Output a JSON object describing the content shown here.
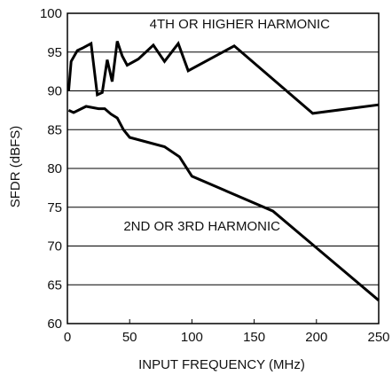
{
  "chart_data": {
    "type": "line",
    "xlabel": "INPUT FREQUENCY (MHz)",
    "ylabel": "SFDR (dBFS)",
    "xlim": [
      0,
      250
    ],
    "ylim": [
      60,
      100
    ],
    "x_ticks": [
      0,
      50,
      100,
      150,
      200,
      250
    ],
    "y_ticks": [
      60,
      65,
      70,
      75,
      80,
      85,
      90,
      95,
      100
    ],
    "grid": "horizontal",
    "line_color": "#000000",
    "series": [
      {
        "name": "4TH OR HIGHER HARMONIC",
        "x": [
          1,
          3,
          8,
          12,
          19,
          24,
          28,
          32,
          36,
          40,
          44,
          48,
          57,
          69,
          78,
          89,
          97,
          134,
          197,
          250
        ],
        "y": [
          90,
          93.8,
          95.2,
          95.5,
          96.1,
          89.5,
          89.8,
          94.0,
          91.2,
          96.4,
          94.5,
          93.3,
          94.1,
          95.9,
          93.8,
          96.1,
          92.6,
          95.8,
          87.1,
          88.2
        ]
      },
      {
        "name": "2ND OR 3RD HARMONIC",
        "x": [
          1,
          5,
          15,
          25,
          30,
          35,
          40,
          45,
          50,
          78,
          90,
          100,
          165,
          250
        ],
        "y": [
          87.5,
          87.2,
          88.0,
          87.7,
          87.7,
          87.0,
          86.5,
          85.0,
          84.0,
          82.8,
          81.5,
          79.0,
          74.5,
          63.0
        ]
      }
    ],
    "annotations": [
      "4TH OR HIGHER HARMONIC",
      "2ND OR 3RD HARMONIC"
    ]
  }
}
